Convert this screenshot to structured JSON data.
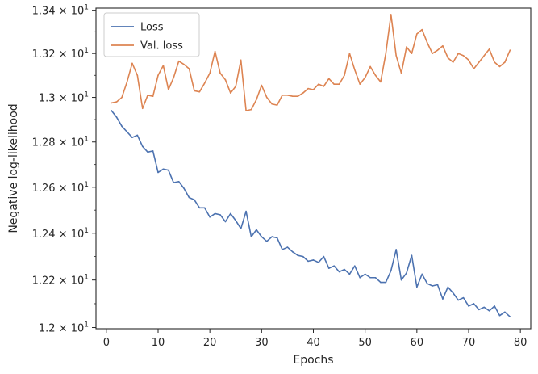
{
  "chart_data": {
    "type": "line",
    "xlabel": "Epochs",
    "ylabel": "Negative log-likelihood",
    "xlim": [
      -2,
      82
    ],
    "ylim": [
      11.995,
      13.41
    ],
    "yscale": "log",
    "grid": false,
    "legend_position": "top-left",
    "xticks": [
      0,
      10,
      20,
      30,
      40,
      50,
      60,
      70,
      80
    ],
    "xtick_labels": [
      "0",
      "10",
      "20",
      "30",
      "40",
      "50",
      "60",
      "70",
      "80"
    ],
    "yticks": [
      12.0,
      12.2,
      12.4,
      12.6,
      12.8,
      13.0,
      13.2,
      13.4
    ],
    "ytick_labels": [
      {
        "base": "1.2",
        "exp": "1"
      },
      {
        "base": "1.22",
        "exp": "1"
      },
      {
        "base": "1.24",
        "exp": "1"
      },
      {
        "base": "1.26",
        "exp": "1"
      },
      {
        "base": "1.28",
        "exp": "1"
      },
      {
        "base": "1.3",
        "exp": "1"
      },
      {
        "base": "1.32",
        "exp": "1"
      },
      {
        "base": "1.34",
        "exp": "1"
      }
    ],
    "x": [
      1,
      2,
      3,
      4,
      5,
      6,
      7,
      8,
      9,
      10,
      11,
      12,
      13,
      14,
      15,
      16,
      17,
      18,
      19,
      20,
      21,
      22,
      23,
      24,
      25,
      26,
      27,
      28,
      29,
      30,
      31,
      32,
      33,
      34,
      35,
      36,
      37,
      38,
      39,
      40,
      41,
      42,
      43,
      44,
      45,
      46,
      47,
      48,
      49,
      50,
      51,
      52,
      53,
      54,
      55,
      56,
      57,
      58,
      59,
      60,
      61,
      62,
      63,
      64,
      65,
      66,
      67,
      68,
      69,
      70,
      71,
      72,
      73,
      74,
      75,
      76,
      77,
      78
    ],
    "series": [
      {
        "name": "Loss",
        "color": "#4c72b0",
        "values": [
          12.94,
          12.91,
          12.87,
          12.845,
          12.82,
          12.83,
          12.78,
          12.755,
          12.76,
          12.665,
          12.68,
          12.675,
          12.62,
          12.625,
          12.595,
          12.555,
          12.545,
          12.51,
          12.51,
          12.47,
          12.485,
          12.48,
          12.45,
          12.485,
          12.455,
          12.42,
          12.495,
          12.385,
          12.415,
          12.385,
          12.365,
          12.385,
          12.38,
          12.33,
          12.34,
          12.32,
          12.305,
          12.3,
          12.28,
          12.285,
          12.275,
          12.3,
          12.25,
          12.26,
          12.235,
          12.245,
          12.225,
          12.26,
          12.21,
          12.225,
          12.21,
          12.21,
          12.19,
          12.19,
          12.24,
          12.33,
          12.2,
          12.23,
          12.305,
          12.17,
          12.225,
          12.185,
          12.175,
          12.18,
          12.12,
          12.17,
          12.145,
          12.115,
          12.125,
          12.09,
          12.1,
          12.075,
          12.085,
          12.07,
          12.09,
          12.05,
          12.065,
          12.045
        ]
      },
      {
        "name": "Val. loss",
        "color": "#dd8452",
        "values": [
          12.975,
          12.98,
          13.0,
          13.07,
          13.155,
          13.1,
          12.95,
          13.01,
          13.005,
          13.1,
          13.145,
          13.035,
          13.09,
          13.165,
          13.15,
          13.13,
          13.03,
          13.025,
          13.065,
          13.11,
          13.21,
          13.11,
          13.08,
          13.02,
          13.05,
          13.17,
          12.94,
          12.945,
          12.99,
          13.055,
          13.0,
          12.97,
          12.965,
          13.01,
          13.01,
          13.005,
          13.005,
          13.02,
          13.04,
          13.035,
          13.06,
          13.05,
          13.085,
          13.06,
          13.06,
          13.1,
          13.2,
          13.125,
          13.06,
          13.09,
          13.14,
          13.1,
          13.07,
          13.2,
          13.38,
          13.19,
          13.11,
          13.23,
          13.2,
          13.29,
          13.31,
          13.25,
          13.2,
          13.215,
          13.235,
          13.18,
          13.16,
          13.2,
          13.19,
          13.17,
          13.13,
          13.16,
          13.19,
          13.22,
          13.16,
          13.14,
          13.16,
          13.215
        ]
      }
    ]
  }
}
